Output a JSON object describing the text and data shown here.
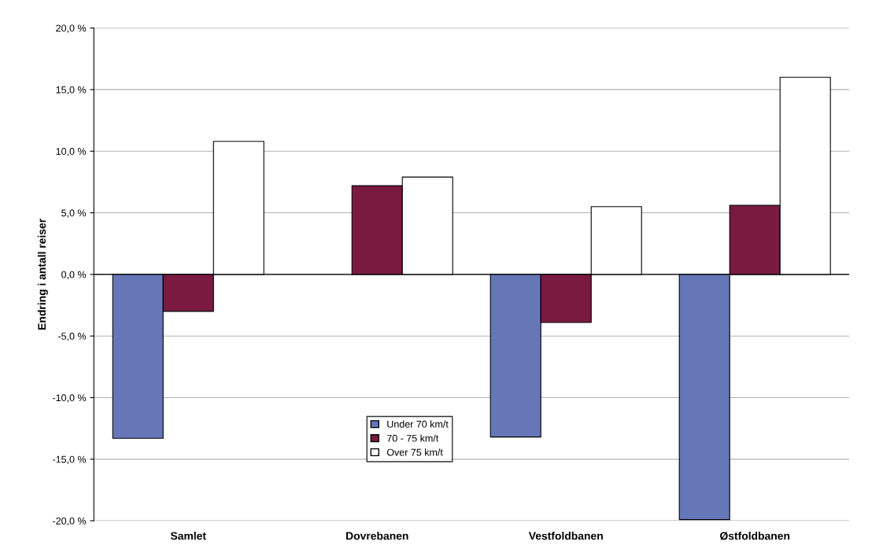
{
  "chart_data": {
    "type": "bar",
    "ylabel": "Endring i antall reiser",
    "categories": [
      "Samlet",
      "Dovrebanen",
      "Vestfoldbanen",
      "Østfoldbanen"
    ],
    "series": [
      {
        "name": "Under 70 km/t",
        "color": "#6677b8",
        "values": [
          -13.3,
          null,
          -13.2,
          -19.9
        ]
      },
      {
        "name": "70 - 75 km/t",
        "color": "#7a1a40",
        "values": [
          -3.0,
          7.2,
          -3.9,
          5.6
        ]
      },
      {
        "name": "Over 75 km/t",
        "color": "#ffffff",
        "values": [
          10.8,
          7.9,
          5.5,
          16.0
        ]
      }
    ],
    "ylim": [
      -20,
      20
    ],
    "yticks": [
      {
        "value": -20,
        "label": "-20,0 %"
      },
      {
        "value": -15,
        "label": "-15,0 %"
      },
      {
        "value": -10,
        "label": "-10,0 %"
      },
      {
        "value": -5,
        "label": "-5,0 %"
      },
      {
        "value": 0,
        "label": "0,0 %"
      },
      {
        "value": 5,
        "label": "5,0 %"
      },
      {
        "value": 10,
        "label": "10,0 %"
      },
      {
        "value": 15,
        "label": "15,0 %"
      },
      {
        "value": 20,
        "label": "20,0 %"
      }
    ],
    "grid": "y",
    "legend": "bottom"
  }
}
